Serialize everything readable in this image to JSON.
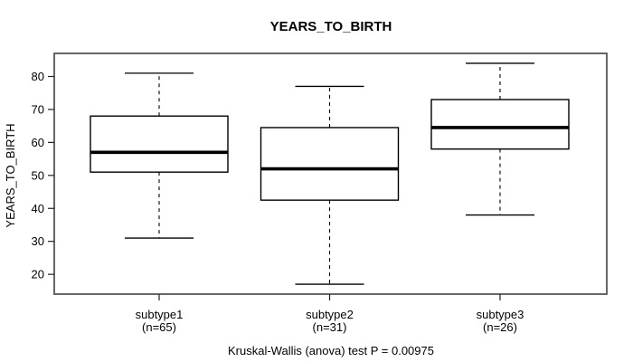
{
  "chart_data": {
    "type": "boxplot",
    "title": "YEARS_TO_BIRTH",
    "ylabel": "YEARS_TO_BIRTH",
    "xlabel": "",
    "caption": "Kruskal-Wallis (anova) test P = 0.00975",
    "p_value": "0.00975",
    "ylim": [
      14,
      87
    ],
    "yticks": [
      20,
      30,
      40,
      50,
      60,
      70,
      80
    ],
    "grid": false,
    "legend": "none",
    "groups": [
      {
        "label": "subtype1",
        "n_label": "(n=65)",
        "n": 65,
        "whisker_low": 31,
        "q1": 51,
        "median": 57,
        "q3": 68,
        "whisker_high": 81
      },
      {
        "label": "subtype2",
        "n_label": "(n=31)",
        "n": 31,
        "whisker_low": 17,
        "q1": 42.5,
        "median": 52,
        "q3": 64.5,
        "whisker_high": 77
      },
      {
        "label": "subtype3",
        "n_label": "(n=26)",
        "n": 26,
        "whisker_low": 38,
        "q1": 58,
        "median": 64.5,
        "q3": 73,
        "whisker_high": 84
      }
    ],
    "colors": {
      "box_stroke": "#000000",
      "box_fill": "#ffffff",
      "median": "#000000",
      "frame": "#555555",
      "text": "#000000"
    }
  }
}
